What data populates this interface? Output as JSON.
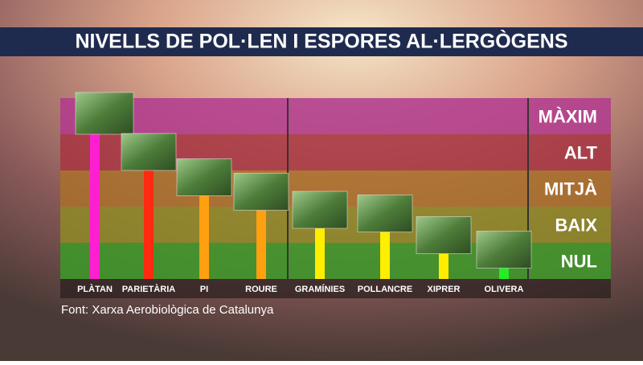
{
  "chart_data": {
    "type": "bar",
    "title": "NIVELLS DE POL·LEN I ESPORES AL·LERGÒGENS",
    "source": "Font: Xarxa Aerobiològica de Catalunya",
    "categories": [
      "PLÀTAN",
      "PARIETÀRIA",
      "PI",
      "ROURE",
      "GRAMÍNIES",
      "POLLANCRE",
      "XIPRER",
      "OLIVERA"
    ],
    "values": [
      4.0,
      3.0,
      2.3,
      1.9,
      1.4,
      1.3,
      0.7,
      0.3
    ],
    "colors": [
      "#ff1fd0",
      "#ff2a10",
      "#ffa010",
      "#ffa010",
      "#ffee00",
      "#ffee00",
      "#ffee00",
      "#22ee22"
    ],
    "ylim": [
      0,
      5
    ],
    "yticks": [
      {
        "value": 0.5,
        "label": "NUL"
      },
      {
        "value": 1.5,
        "label": "BAIX"
      },
      {
        "value": 2.5,
        "label": "MITJÀ"
      },
      {
        "value": 3.5,
        "label": "ALT"
      },
      {
        "value": 4.5,
        "label": "MÀXIM"
      }
    ],
    "band_colors": [
      "#3c9a28",
      "#8e8a26",
      "#a9702a",
      "#a73542",
      "#b2398f"
    ]
  }
}
